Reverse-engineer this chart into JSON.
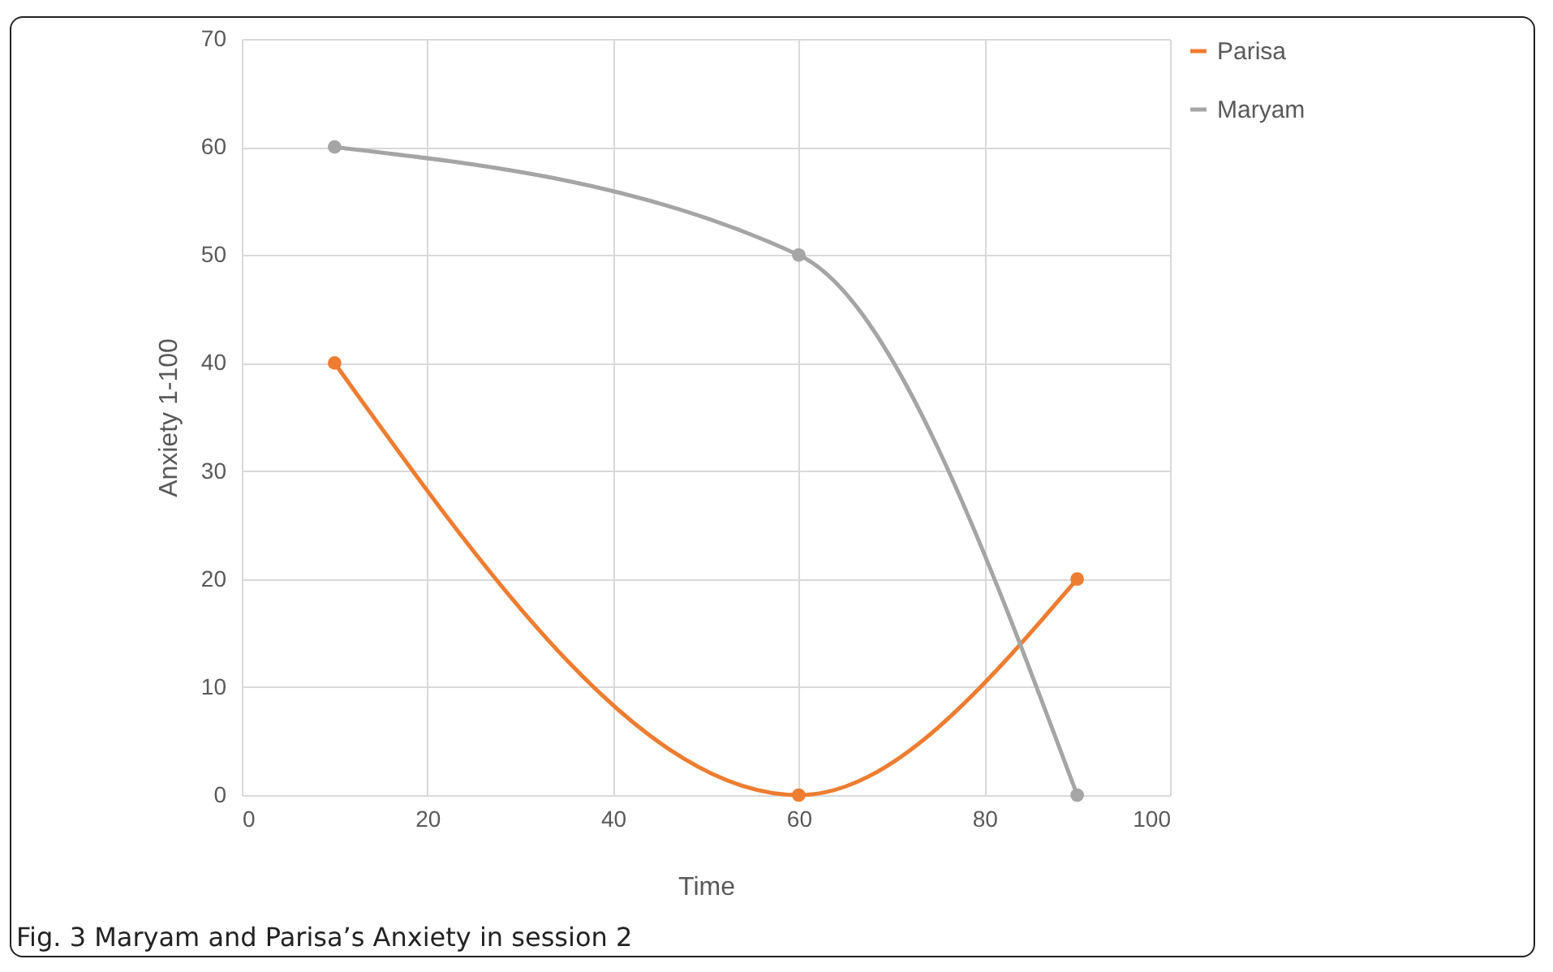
{
  "chart_data": {
    "type": "line",
    "xlabel": "Time",
    "ylabel": "Anxiety 1-100",
    "x": [
      10,
      60,
      90
    ],
    "series": [
      {
        "name": "Parisa",
        "color": "#ed7d31",
        "values": [
          40,
          0,
          20
        ]
      },
      {
        "name": "Maryam",
        "color": "#a5a5a5",
        "values": [
          60,
          50,
          0
        ]
      }
    ],
    "xlim": [
      0,
      100
    ],
    "xticks": [
      0,
      20,
      40,
      60,
      80,
      100
    ],
    "ylim": [
      0,
      70
    ],
    "yticks": [
      0,
      10,
      20,
      30,
      40,
      50,
      60,
      70
    ],
    "grid": true,
    "legend": "right",
    "marker": "circle",
    "line_style": "solid",
    "annotations": [
      "Fig. 3 Maryam and Parisa’s Anxiety in session 2"
    ]
  }
}
